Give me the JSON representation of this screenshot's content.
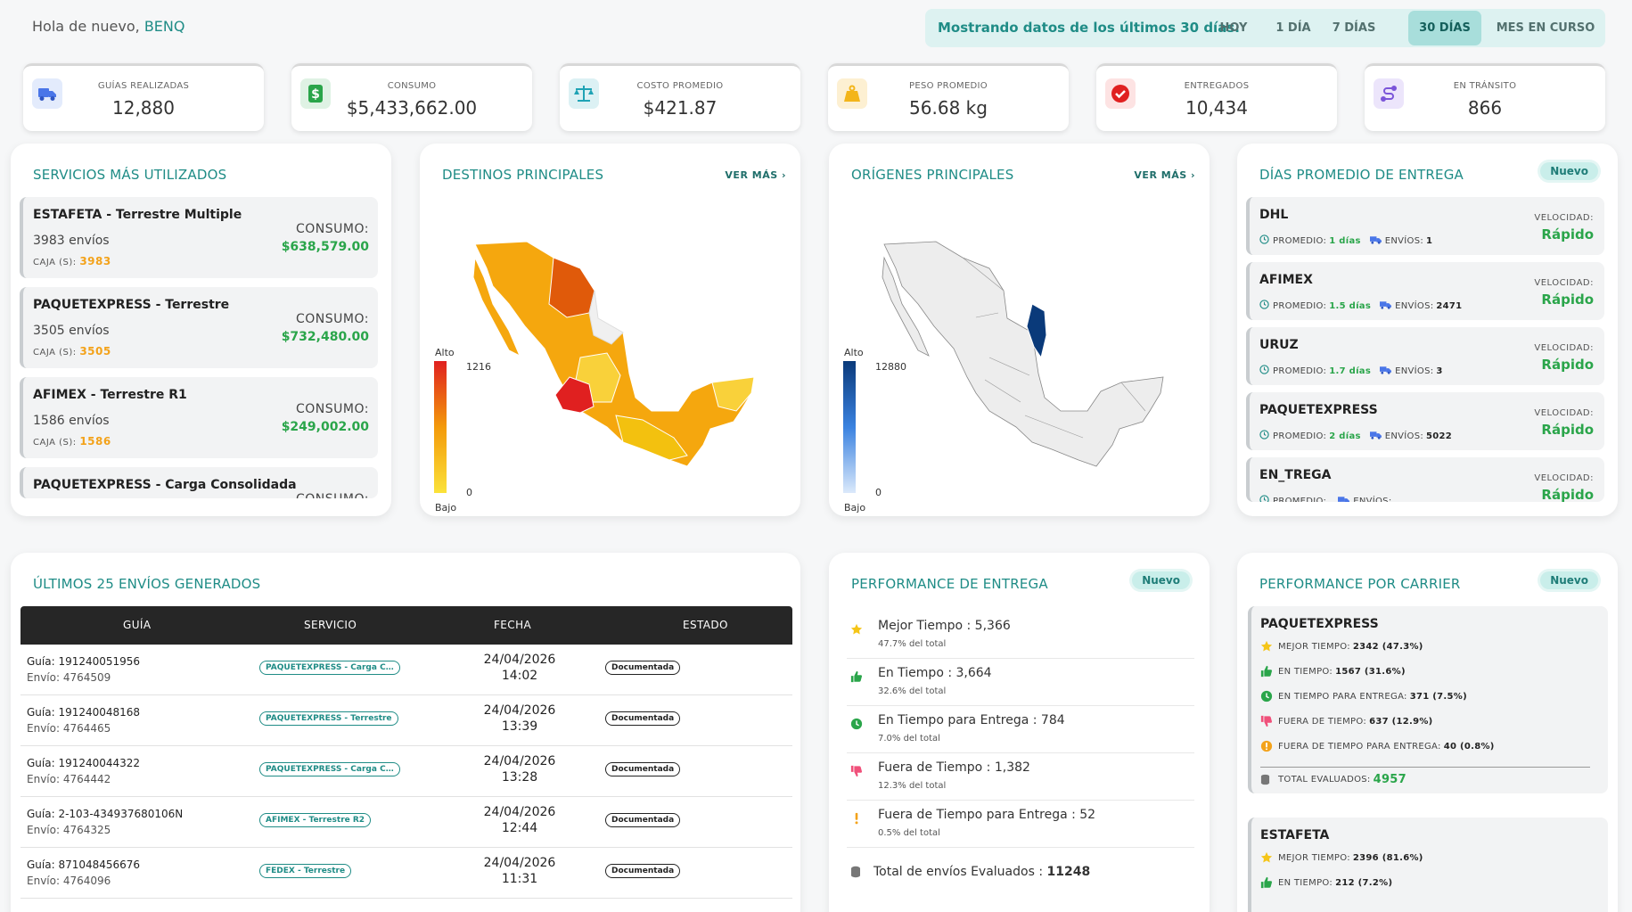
{
  "header": {
    "greeting": "Hola de nuevo,",
    "user": "BENQ",
    "range_msg": "Mostrando datos de los últimos 30 días.",
    "ranges": [
      {
        "label": "HOY"
      },
      {
        "label": "1 DÍA"
      },
      {
        "label": "7 DÍAS"
      },
      {
        "label": "30 DÍAS",
        "active": true
      },
      {
        "label": "MES EN CURSO"
      }
    ]
  },
  "stats": [
    {
      "label": "GUÍAS REALIZADAS",
      "value": "12,880",
      "icon": "truck-icon",
      "color": "#4a76e8"
    },
    {
      "label": "CONSUMO",
      "value": "$5,433,662.00",
      "icon": "dollar-icon",
      "color": "#2aa54a"
    },
    {
      "label": "COSTO PROMEDIO",
      "value": "$421.87",
      "icon": "scale-icon",
      "color": "#1fa3b5"
    },
    {
      "label": "PESO PROMEDIO",
      "value": "56.68 kg",
      "icon": "weight-icon",
      "color": "#f3b51a"
    },
    {
      "label": "ENTREGADOS",
      "value": "10,434",
      "icon": "check-icon",
      "color": "#e02020"
    },
    {
      "label": "EN TRÁNSITO",
      "value": "866",
      "icon": "route-icon",
      "color": "#7b55d9"
    }
  ],
  "services": {
    "title": "SERVICIOS MÁS UTILIZADOS",
    "consumo_label": "CONSUMO:",
    "caja_label": "CAJA (S):",
    "items": [
      {
        "name": "ESTAFETA - Terrestre Multiple",
        "envios": "3983 envíos",
        "caja": "3983",
        "consumo": "$638,579.00"
      },
      {
        "name": "PAQUETEXPRESS - Terrestre",
        "envios": "3505 envíos",
        "caja": "3505",
        "consumo": "$732,480.00"
      },
      {
        "name": "AFIMEX - Terrestre R1",
        "envios": "1586 envíos",
        "caja": "1586",
        "consumo": "$249,002.00"
      },
      {
        "name": "PAQUETEXPRESS - Carga Consolidada",
        "envios": "",
        "caja": "",
        "consumo": ""
      }
    ]
  },
  "destinos": {
    "title": "DESTINOS PRINCIPALES",
    "ver_mas": "VER MÁS ›",
    "legend_high": "Alto",
    "legend_low": "Bajo",
    "max": "1216",
    "min": "0"
  },
  "origenes": {
    "title": "ORÍGENES PRINCIPALES",
    "ver_mas": "VER MÁS ›",
    "legend_high": "Alto",
    "legend_low": "Bajo",
    "max": "12880",
    "min": "0"
  },
  "dias": {
    "title": "DÍAS PROMEDIO DE ENTREGA",
    "badge": "Nuevo",
    "promedio_label": "PROMEDIO:",
    "envios_label": "ENVÍOS:",
    "vel_label": "VELOCIDAD:",
    "items": [
      {
        "name": "DHL",
        "promedio": "1 días",
        "envios": "1",
        "speed": "Rápido"
      },
      {
        "name": "AFIMEX",
        "promedio": "1.5 días",
        "envios": "2471",
        "speed": "Rápido"
      },
      {
        "name": "URUZ",
        "promedio": "1.7 días",
        "envios": "3",
        "speed": "Rápido"
      },
      {
        "name": "PAQUETEXPRESS",
        "promedio": "2 días",
        "envios": "5022",
        "speed": "Rápido"
      },
      {
        "name": "EN_TREGA",
        "promedio": "",
        "envios": "",
        "speed": "Rápido"
      }
    ]
  },
  "envios": {
    "title": "ÚLTIMOS 25 ENVÍOS GENERADOS",
    "cols": [
      "GUÍA",
      "SERVICIO",
      "FECHA",
      "ESTADO"
    ],
    "rows": [
      {
        "guia": "Guía: 191240051956",
        "envio": "Envío: 4764509",
        "servicio": "PAQUETEXPRESS - Carga C...",
        "fecha": "24/04/2026",
        "hora": "14:02",
        "estado": "Documentada"
      },
      {
        "guia": "Guía: 191240048168",
        "envio": "Envío: 4764465",
        "servicio": "PAQUETEXPRESS - Terrestre",
        "fecha": "24/04/2026",
        "hora": "13:39",
        "estado": "Documentada"
      },
      {
        "guia": "Guía: 191240044322",
        "envio": "Envío: 4764442",
        "servicio": "PAQUETEXPRESS - Carga C...",
        "fecha": "24/04/2026",
        "hora": "13:28",
        "estado": "Documentada"
      },
      {
        "guia": "Guía: 2-103-434937680106N",
        "envio": "Envío: 4764325",
        "servicio": "AFIMEX - Terrestre R2",
        "fecha": "24/04/2026",
        "hora": "12:44",
        "estado": "Documentada"
      },
      {
        "guia": "Guía: 871048456676",
        "envio": "Envío: 4764096",
        "servicio": "FEDEX - Terrestre",
        "fecha": "24/04/2026",
        "hora": "11:31",
        "estado": "Documentada"
      }
    ]
  },
  "performance": {
    "title": "PERFORMANCE DE ENTREGA",
    "badge": "Nuevo",
    "items": [
      {
        "text": "Mejor Tiempo : 5,366",
        "sub": "47.7% del total",
        "icon": "star-icon"
      },
      {
        "text": "En Tiempo : 3,664",
        "sub": "32.6% del total",
        "icon": "thumbs-up-icon"
      },
      {
        "text": "En Tiempo para Entrega : 784",
        "sub": "7.0% del total",
        "icon": "clock-icon"
      },
      {
        "text": "Fuera de Tiempo : 1,382",
        "sub": "12.3% del total",
        "icon": "thumbs-down-icon"
      },
      {
        "text": "Fuera de Tiempo para Entrega : 52",
        "sub": "0.5% del total",
        "icon": "exclamation-icon"
      }
    ],
    "total_label": "Total de envíos Evaluados :",
    "total": "11248"
  },
  "carrier": {
    "title": "PERFORMANCE POR CARRIER",
    "badge": "Nuevo",
    "total_label": "TOTAL EVALUADOS:",
    "carriers": [
      {
        "name": "PAQUETEXPRESS",
        "lines": [
          {
            "label": "MEJOR TIEMPO:",
            "value": "2342 (47.3%)",
            "icon": "star-icon"
          },
          {
            "label": "EN TIEMPO:",
            "value": "1567 (31.6%)",
            "icon": "thumbs-up-icon"
          },
          {
            "label": "EN TIEMPO PARA ENTREGA:",
            "value": "371 (7.5%)",
            "icon": "clock-icon"
          },
          {
            "label": "FUERA DE TIEMPO:",
            "value": "637 (12.9%)",
            "icon": "thumbs-down-icon"
          },
          {
            "label": "FUERA DE TIEMPO PARA ENTREGA:",
            "value": "40 (0.8%)",
            "icon": "exclamation-icon"
          }
        ],
        "total": "4957"
      },
      {
        "name": "ESTAFETA",
        "lines": [
          {
            "label": "MEJOR TIEMPO:",
            "value": "2396 (81.6%)",
            "icon": "star-icon"
          },
          {
            "label": "EN TIEMPO:",
            "value": "212 (7.2%)",
            "icon": "thumbs-up-icon"
          }
        ]
      }
    ]
  }
}
